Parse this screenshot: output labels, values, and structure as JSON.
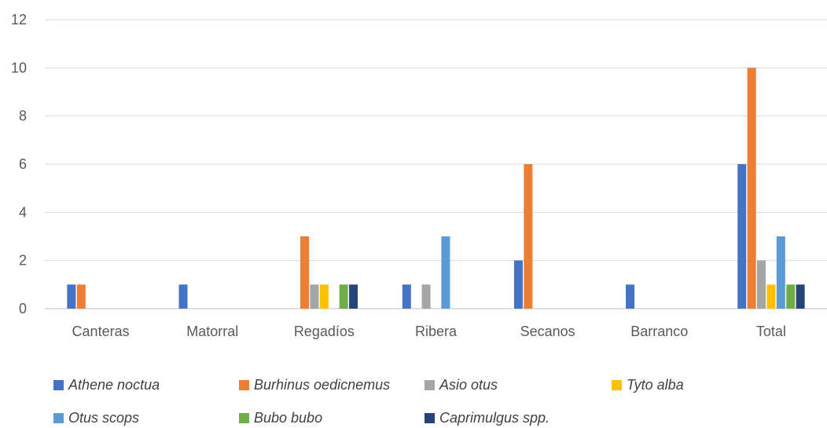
{
  "chart_data": {
    "type": "bar",
    "categories": [
      "Canteras",
      "Matorral",
      "Regadíos",
      "Ribera",
      "Secanos",
      "Barranco",
      "Total"
    ],
    "ylim": [
      0,
      12
    ],
    "yticks": [
      0,
      2,
      4,
      6,
      8,
      10,
      12
    ],
    "grid": true,
    "legend_position": "bottom",
    "series": [
      {
        "name": "Athene noctua",
        "color": "#4472C4",
        "values": [
          1,
          1,
          0,
          1,
          2,
          1,
          6
        ]
      },
      {
        "name": "Burhinus oedicnemus",
        "color": "#ED7D31",
        "values": [
          1,
          0,
          3,
          0,
          6,
          0,
          10
        ]
      },
      {
        "name": "Asio otus",
        "color": "#A5A5A5",
        "values": [
          0,
          0,
          1,
          1,
          0,
          0,
          2
        ]
      },
      {
        "name": "Tyto alba",
        "color": "#FFC000",
        "values": [
          0,
          0,
          1,
          0,
          0,
          0,
          1
        ]
      },
      {
        "name": "Otus scops",
        "color": "#5B9BD5",
        "values": [
          0,
          0,
          0,
          3,
          0,
          0,
          3
        ]
      },
      {
        "name": "Bubo bubo",
        "color": "#70AD47",
        "values": [
          0,
          0,
          1,
          0,
          0,
          0,
          1
        ]
      },
      {
        "name": "Caprimulgus spp.",
        "color": "#264478",
        "values": [
          0,
          0,
          1,
          0,
          0,
          0,
          1
        ]
      }
    ]
  }
}
